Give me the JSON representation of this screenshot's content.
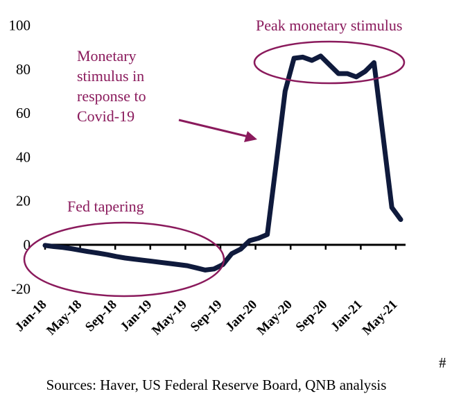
{
  "chart_data": {
    "type": "line",
    "title": "",
    "xlabel": "",
    "ylabel": "",
    "ylim": [
      -20,
      100
    ],
    "yticks": [
      100,
      80,
      60,
      40,
      20,
      0,
      -20
    ],
    "grid": false,
    "x": [
      "Jan-18",
      "Feb-18",
      "Mar-18",
      "Apr-18",
      "May-18",
      "Jun-18",
      "Jul-18",
      "Aug-18",
      "Sep-18",
      "Oct-18",
      "Nov-18",
      "Dec-18",
      "Jan-19",
      "Feb-19",
      "Mar-19",
      "Apr-19",
      "May-19",
      "Jun-19",
      "Jul-19",
      "Aug-19",
      "Sep-19",
      "Oct-19",
      "Nov-19",
      "Dec-19",
      "Jan-20",
      "Feb-20",
      "Mar-20",
      "Apr-20",
      "May-20",
      "Jun-20",
      "Jul-20",
      "Aug-20",
      "Sep-20",
      "Oct-20",
      "Nov-20",
      "Dec-20",
      "Jan-21",
      "Feb-21",
      "Mar-21",
      "Apr-21",
      "May-21"
    ],
    "xtick_labels": [
      "Jan-18",
      "May-18",
      "Sep-18",
      "Jan-19",
      "May-19",
      "Sep-19",
      "Jan-20",
      "May-20",
      "Sep-20",
      "Jan-21",
      "May-21"
    ],
    "series": [
      {
        "values": [
          -0.3,
          -0.8,
          -1.2,
          -1.8,
          -2.5,
          -3.2,
          -3.8,
          -4.5,
          -5.3,
          -6,
          -6.5,
          -7,
          -7.5,
          -8,
          -8.5,
          -9,
          -9.5,
          -10.5,
          -11.5,
          -11,
          -9,
          -4,
          -2,
          1.9,
          3,
          4.7,
          37,
          70,
          85,
          85.5,
          84,
          86,
          82,
          78,
          78,
          76.5,
          79,
          83,
          50,
          17,
          11.5
        ],
        "color": "#0f1a3c"
      }
    ],
    "annotations": {
      "peak": "Peak monetary stimulus",
      "covid_lines": [
        "Monetary",
        "stimulus in",
        "response to",
        "Covid-19"
      ],
      "tapering": "Fed tapering"
    },
    "annotation_color": "#8a1a5c"
  },
  "footer": {
    "marker": "#",
    "sources": "Sources: Haver, US Federal Reserve Board, QNB analysis"
  }
}
